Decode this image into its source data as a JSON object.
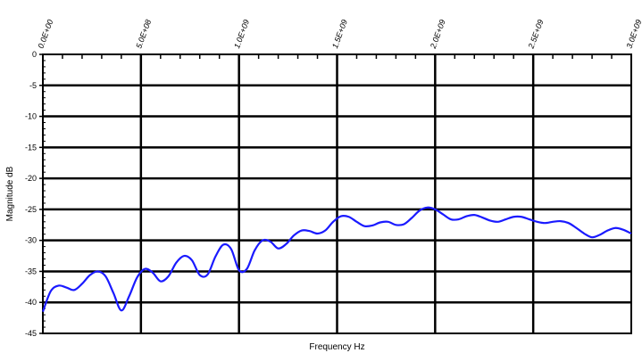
{
  "chart_data": {
    "type": "line",
    "xlabel": "Frequency Hz",
    "ylabel": "Magnitude dB",
    "xlim": [
      0,
      3000000000
    ],
    "ylim": [
      -45,
      0
    ],
    "x_ticks": [
      0,
      500000000,
      1000000000,
      1500000000,
      2000000000,
      2500000000,
      3000000000
    ],
    "x_tick_labels": [
      "0.0E+00",
      "5.0E+08",
      "1.0E+09",
      "1.5E+09",
      "2.0E+09",
      "2.5E+09",
      "3.0E+09"
    ],
    "y_ticks": [
      0,
      -5,
      -10,
      -15,
      -20,
      -25,
      -30,
      -35,
      -40,
      -45
    ],
    "y_tick_labels": [
      "0",
      "-5",
      "-10",
      "-15",
      "-20",
      "-25",
      "-30",
      "-35",
      "-40",
      "-45"
    ],
    "grid": true,
    "legend": "none",
    "series": [
      {
        "color": "#1a1aff",
        "x": [
          0,
          40000000,
          80000000,
          120000000,
          160000000,
          200000000,
          240000000,
          280000000,
          320000000,
          360000000,
          400000000,
          440000000,
          480000000,
          520000000,
          560000000,
          600000000,
          640000000,
          680000000,
          720000000,
          760000000,
          800000000,
          840000000,
          880000000,
          920000000,
          960000000,
          1000000000,
          1040000000,
          1080000000,
          1120000000,
          1160000000,
          1200000000,
          1240000000,
          1280000000,
          1320000000,
          1360000000,
          1400000000,
          1440000000,
          1480000000,
          1520000000,
          1560000000,
          1600000000,
          1640000000,
          1680000000,
          1720000000,
          1760000000,
          1800000000,
          1840000000,
          1880000000,
          1920000000,
          1960000000,
          2000000000,
          2040000000,
          2080000000,
          2120000000,
          2160000000,
          2200000000,
          2240000000,
          2280000000,
          2320000000,
          2360000000,
          2400000000,
          2440000000,
          2480000000,
          2520000000,
          2560000000,
          2600000000,
          2640000000,
          2680000000,
          2720000000,
          2760000000,
          2800000000,
          2840000000,
          2880000000,
          2920000000,
          2960000000,
          3000000000
        ],
        "y": [
          -41.5,
          -38.2,
          -37.3,
          -37.6,
          -38.0,
          -37.0,
          -35.6,
          -35.0,
          -35.8,
          -38.5,
          -41.3,
          -39.0,
          -36.0,
          -34.6,
          -35.2,
          -36.6,
          -35.8,
          -33.6,
          -32.5,
          -33.2,
          -35.6,
          -35.5,
          -32.6,
          -30.7,
          -31.4,
          -34.8,
          -34.6,
          -31.6,
          -30.0,
          -30.2,
          -31.3,
          -30.6,
          -29.2,
          -28.4,
          -28.5,
          -28.9,
          -28.4,
          -27.0,
          -26.1,
          -26.2,
          -27.0,
          -27.7,
          -27.6,
          -27.1,
          -27.0,
          -27.5,
          -27.4,
          -26.4,
          -25.2,
          -24.7,
          -25.0,
          -25.8,
          -26.6,
          -26.6,
          -26.1,
          -25.9,
          -26.3,
          -26.8,
          -27.0,
          -26.6,
          -26.2,
          -26.2,
          -26.6,
          -27.0,
          -27.2,
          -27.0,
          -26.9,
          -27.2,
          -28.0,
          -28.9,
          -29.5,
          -29.1,
          -28.4,
          -28.0,
          -28.3,
          -28.9
        ]
      }
    ]
  }
}
